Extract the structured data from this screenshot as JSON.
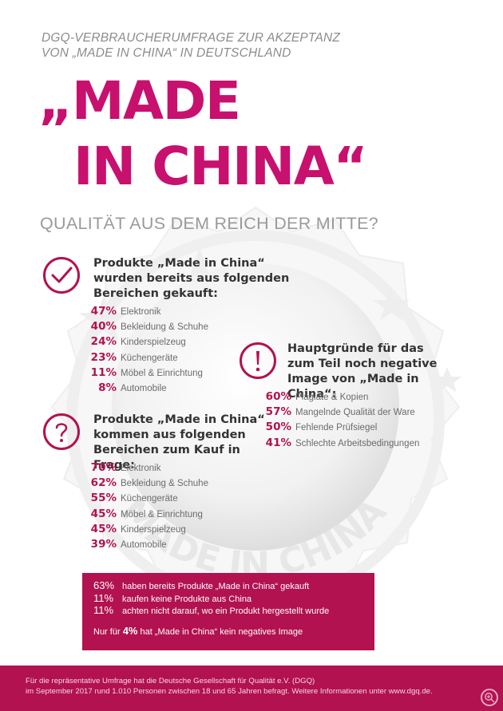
{
  "header": {
    "kicker_line1": "DGQ-VERBRAUCHERUMFRAGE ZUR AKZEPTANZ",
    "kicker_line2": "VON „MADE IN CHINA“ IN DEUTSCHLAND",
    "title_line1": "„MADE",
    "title_line2": "IN CHINA“",
    "subtitle": "QUALITÄT AUS DEM REICH DER MITTE?"
  },
  "seal_text": "MADE IN CHINA",
  "bought": {
    "icon": "checkmark-icon",
    "heading": "Produkte „Made in China“ wurden bereits aus folgenden Bereichen gekauft:",
    "items": [
      {
        "pct": "47%",
        "label": "Elektronik"
      },
      {
        "pct": "40%",
        "label": "Bekleidung & Schuhe"
      },
      {
        "pct": "24%",
        "label": "Kinderspielzeug"
      },
      {
        "pct": "23%",
        "label": "Küchengeräte"
      },
      {
        "pct": "11%",
        "label": "Möbel & Einrichtung"
      },
      {
        "pct": "8%",
        "label": "Automobile"
      }
    ]
  },
  "consider": {
    "icon": "question-mark-icon",
    "heading": "Produkte „Made in China“ kommen aus folgenden Bereichen zum Kauf in Frage:",
    "items": [
      {
        "pct": "70%",
        "label": "Elektronik"
      },
      {
        "pct": "62%",
        "label": "Bekleidung & Schuhe"
      },
      {
        "pct": "55%",
        "label": "Küchengeräte"
      },
      {
        "pct": "45%",
        "label": "Möbel & Einrichtung"
      },
      {
        "pct": "45%",
        "label": "Kinderspielzeug"
      },
      {
        "pct": "39%",
        "label": "Automobile"
      }
    ]
  },
  "reasons": {
    "icon": "exclamation-icon",
    "heading": "Hauptgründe für das zum Teil noch negative Image von „Made in China“:",
    "items": [
      {
        "pct": "60%",
        "label": "Plagiate & Kopien"
      },
      {
        "pct": "57%",
        "label": "Mangelnde Qualität der Ware"
      },
      {
        "pct": "50%",
        "label": "Fehlende Prüfsiegel"
      },
      {
        "pct": "41%",
        "label": "Schlechte Arbeitsbedingungen"
      }
    ]
  },
  "summary": {
    "rows": [
      {
        "pct": "63%",
        "text": "haben bereits Produkte „Made in China“ gekauft"
      },
      {
        "pct": "11%",
        "text": "kaufen keine Produkte aus China"
      },
      {
        "pct": "11%",
        "text": "achten nicht darauf, wo ein Produkt hergestellt wurde"
      }
    ],
    "final_prefix": "Nur für",
    "final_pct": "4%",
    "final_suffix": "hat „Made in China“ kein negatives Image"
  },
  "footer": {
    "line1": "Für die repräsentative Umfrage hat die Deutsche Gesellschaft für Qualität e.V. (DGQ)",
    "line2": "im September 2017 rund 1.010 Personen zwischen 18 und 65 Jahren befragt. Weitere Informationen unter www.dgq.de."
  },
  "colors": {
    "brand_magenta": "#c8106e",
    "accent_crimson": "#b2124f",
    "text_gray": "#6b6b6b"
  }
}
